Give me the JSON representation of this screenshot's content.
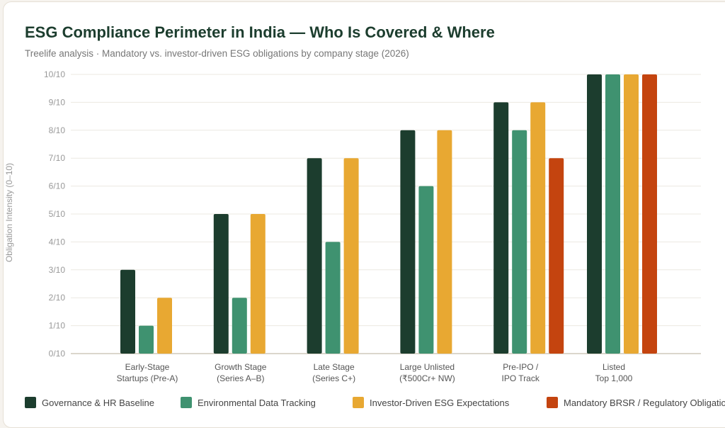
{
  "title": "ESG Compliance Perimeter in India — Who Is Covered & Where",
  "subtitle": "Treelife analysis · Mandatory vs. investor-driven ESG obligations by company stage (2026)",
  "chart_data": {
    "type": "bar",
    "title": "ESG Compliance Perimeter in India — Who Is Covered & Where",
    "subtitle": "Treelife analysis · Mandatory vs. investor-driven ESG obligations by company stage (2026)",
    "ylabel": "Obligation Intensity (0–10)",
    "xlabel": "",
    "ylim": [
      0,
      10
    ],
    "yticks": [
      "0/10",
      "1/10",
      "2/10",
      "3/10",
      "4/10",
      "5/10",
      "6/10",
      "7/10",
      "8/10",
      "9/10",
      "10/10"
    ],
    "grid": true,
    "legend": "bottom",
    "categories": [
      [
        "Early-Stage",
        "Startups (Pre-A)"
      ],
      [
        "Growth Stage",
        "(Series A–B)"
      ],
      [
        "Late Stage",
        "(Series C+)"
      ],
      [
        "Large Unlisted",
        "(₹500Cr+ NW)"
      ],
      [
        "Pre-IPO /",
        "IPO Track"
      ],
      [
        "Listed",
        "Top 1,000"
      ]
    ],
    "series": [
      {
        "name": "Governance & HR Baseline",
        "color": "#1c3d2e",
        "values": [
          3,
          5,
          7,
          8,
          9,
          10
        ]
      },
      {
        "name": "Environmental Data Tracking",
        "color": "#3f9270",
        "values": [
          1,
          2,
          4,
          6,
          8,
          10
        ]
      },
      {
        "name": "Investor-Driven ESG Expectations",
        "color": "#e8a832",
        "values": [
          2,
          5,
          7,
          8,
          9,
          10
        ]
      },
      {
        "name": "Mandatory BRSR / Regulatory Obligations",
        "color": "#c4440f",
        "values": [
          null,
          null,
          null,
          null,
          7,
          10
        ]
      }
    ]
  }
}
